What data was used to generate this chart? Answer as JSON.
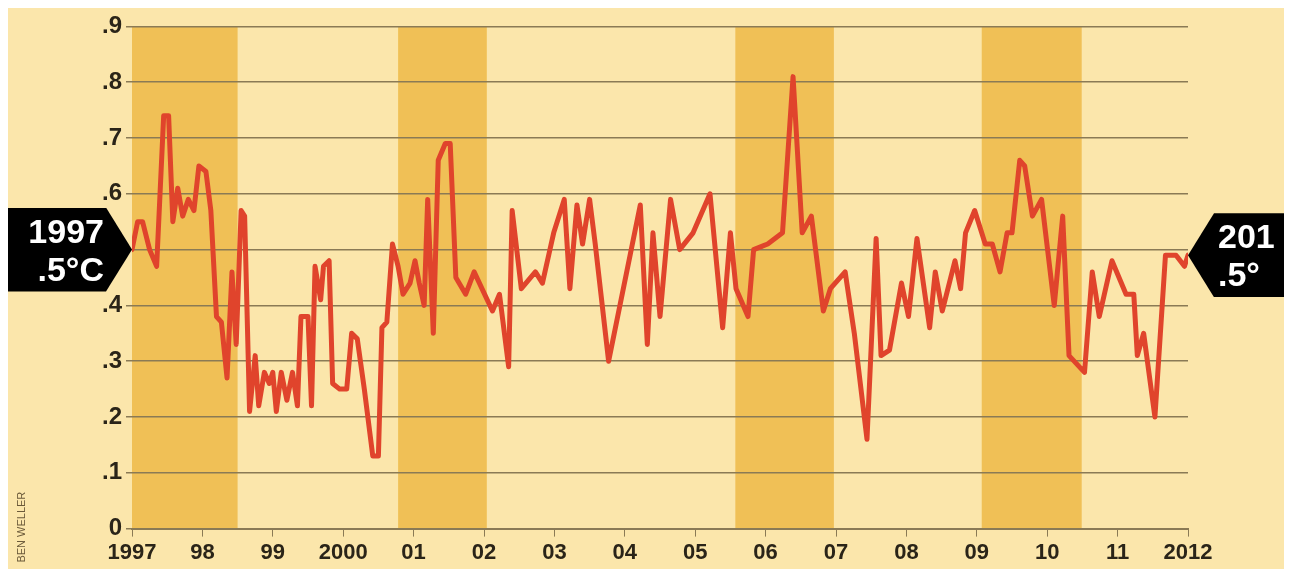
{
  "chart_data": {
    "type": "line",
    "x": [
      1997.0,
      1997.08,
      1997.15,
      1997.25,
      1997.35,
      1997.45,
      1997.52,
      1997.58,
      1997.65,
      1997.72,
      1997.8,
      1997.88,
      1997.95,
      1998.05,
      1998.12,
      1998.2,
      1998.27,
      1998.35,
      1998.42,
      1998.48,
      1998.55,
      1998.6,
      1998.67,
      1998.75,
      1998.8,
      1998.88,
      1998.95,
      1999.0,
      1999.05,
      1999.12,
      1999.2,
      1999.28,
      1999.35,
      1999.4,
      1999.5,
      1999.55,
      1999.6,
      1999.68,
      1999.72,
      1999.8,
      1999.85,
      1999.95,
      2000.05,
      2000.12,
      2000.2,
      2000.3,
      2000.42,
      2000.5,
      2000.55,
      2000.62,
      2000.7,
      2000.78,
      2000.85,
      2000.95,
      2001.02,
      2001.08,
      2001.15,
      2001.2,
      2001.28,
      2001.35,
      2001.45,
      2001.52,
      2001.6,
      2001.74,
      2001.86,
      2002.12,
      2002.22,
      2002.35,
      2002.4,
      2002.53,
      2002.73,
      2002.83,
      2002.99,
      2003.14,
      2003.22,
      2003.32,
      2003.4,
      2003.5,
      2003.58,
      2003.77,
      2004.22,
      2004.32,
      2004.4,
      2004.5,
      2004.65,
      2004.78,
      2004.97,
      2005.21,
      2005.39,
      2005.5,
      2005.58,
      2005.75,
      2005.83,
      2006.03,
      2006.24,
      2006.39,
      2006.52,
      2006.65,
      2006.82,
      2006.92,
      2007.13,
      2007.26,
      2007.44,
      2007.57,
      2007.64,
      2007.76,
      2007.93,
      2008.03,
      2008.15,
      2008.33,
      2008.41,
      2008.51,
      2008.69,
      2008.77,
      2008.84,
      2008.97,
      2009.12,
      2009.22,
      2009.33,
      2009.43,
      2009.5,
      2009.61,
      2009.68,
      2009.79,
      2009.92,
      2010.1,
      2010.22,
      2010.31,
      2010.53,
      2010.64,
      2010.74,
      2010.92,
      2011.12,
      2011.23,
      2011.28,
      2011.37,
      2011.53,
      2011.68,
      2011.83,
      2011.95,
      2012.0
    ],
    "series": [
      {
        "color": "#e0442c",
        "values": [
          0.5,
          0.55,
          0.55,
          0.5,
          0.47,
          0.74,
          0.74,
          0.55,
          0.61,
          0.56,
          0.59,
          0.57,
          0.65,
          0.64,
          0.57,
          0.38,
          0.37,
          0.27,
          0.46,
          0.33,
          0.57,
          0.56,
          0.21,
          0.31,
          0.22,
          0.28,
          0.26,
          0.28,
          0.21,
          0.28,
          0.23,
          0.28,
          0.22,
          0.38,
          0.38,
          0.22,
          0.47,
          0.41,
          0.47,
          0.48,
          0.26,
          0.25,
          0.25,
          0.35,
          0.34,
          0.25,
          0.13,
          0.13,
          0.36,
          0.37,
          0.51,
          0.47,
          0.42,
          0.44,
          0.48,
          0.44,
          0.4,
          0.59,
          0.35,
          0.66,
          0.69,
          0.69,
          0.45,
          0.42,
          0.46,
          0.39,
          0.42,
          0.29,
          0.57,
          0.43,
          0.46,
          0.44,
          0.53,
          0.59,
          0.43,
          0.58,
          0.51,
          0.59,
          0.51,
          0.3,
          0.58,
          0.33,
          0.53,
          0.38,
          0.59,
          0.5,
          0.53,
          0.6,
          0.36,
          0.53,
          0.43,
          0.38,
          0.5,
          0.51,
          0.53,
          0.81,
          0.53,
          0.56,
          0.39,
          0.43,
          0.46,
          0.35,
          0.16,
          0.52,
          0.31,
          0.32,
          0.44,
          0.38,
          0.52,
          0.36,
          0.46,
          0.39,
          0.48,
          0.43,
          0.53,
          0.57,
          0.51,
          0.51,
          0.46,
          0.53,
          0.53,
          0.66,
          0.65,
          0.56,
          0.59,
          0.4,
          0.56,
          0.31,
          0.28,
          0.46,
          0.38,
          0.48,
          0.42,
          0.42,
          0.31,
          0.35,
          0.2,
          0.49,
          0.49,
          0.47,
          0.49
        ]
      }
    ],
    "xlim": [
      1997,
      2012
    ],
    "xticks": [
      1997,
      {
        "value": 1998,
        "label": "98"
      },
      {
        "value": 1999,
        "label": "99"
      },
      2000,
      {
        "value": 2001,
        "label": "01"
      },
      {
        "value": 2002,
        "label": "02"
      },
      {
        "value": 2003,
        "label": "03"
      },
      {
        "value": 2004,
        "label": "04"
      },
      {
        "value": 2005,
        "label": "05"
      },
      {
        "value": 2006,
        "label": "06"
      },
      {
        "value": 2007,
        "label": "07"
      },
      {
        "value": 2008,
        "label": "08"
      },
      {
        "value": 2009,
        "label": "09"
      },
      {
        "value": 2010,
        "label": "10"
      },
      {
        "value": 2011,
        "label": "11"
      },
      2012
    ],
    "ylim": [
      0,
      0.9
    ],
    "yticks": [
      0,
      {
        "value": 0.1,
        "label": ".1"
      },
      {
        "value": 0.2,
        "label": ".2"
      },
      {
        "value": 0.3,
        "label": ".3"
      },
      {
        "value": 0.4,
        "label": ".4"
      },
      {
        "value": 0.5,
        "label": null
      },
      {
        "value": 0.6,
        "label": ".6"
      },
      {
        "value": 0.7,
        "label": ".7"
      },
      {
        "value": 0.8,
        "label": ".8"
      },
      {
        "value": 0.9,
        "label": ".9"
      }
    ],
    "grid": "y",
    "bands": [
      {
        "axis": "x",
        "from": 1997.0,
        "to": 1998.5,
        "color": "#f0c056"
      },
      {
        "axis": "x",
        "from": 2000.78,
        "to": 2002.04,
        "color": "#f0c056"
      },
      {
        "axis": "x",
        "from": 2005.57,
        "to": 2006.97,
        "color": "#f0c056"
      },
      {
        "axis": "x",
        "from": 2009.07,
        "to": 2010.49,
        "color": "#f0c056"
      }
    ],
    "annotations": [
      {
        "text": "1997 .5°C",
        "x": 1997,
        "y": 0.5
      },
      {
        "text": "201 .5°",
        "x": 2012,
        "y": 0.49
      },
      "BEN WELLER"
    ]
  }
}
